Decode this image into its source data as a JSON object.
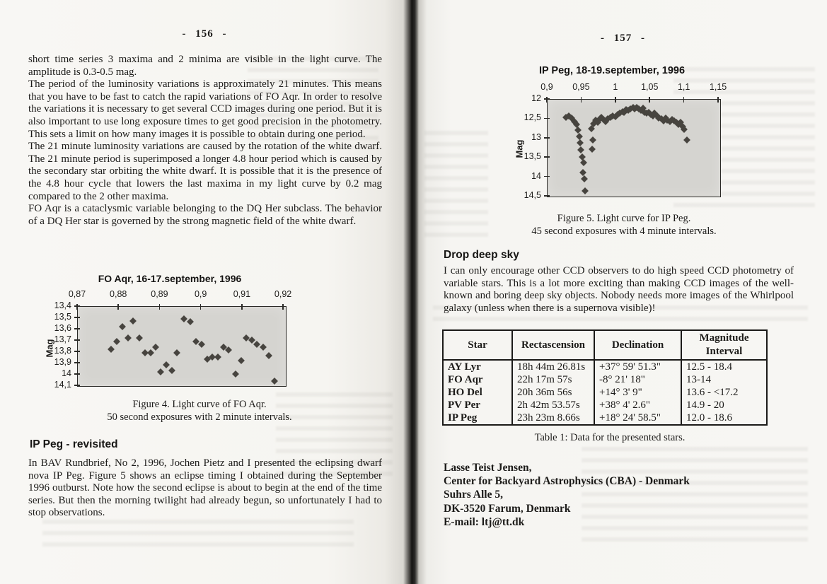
{
  "left_page": {
    "page_number": "- 156 -",
    "paragraphs": [
      "short time series 3 maxima and 2 minima are visible in the light curve. The amplitude is 0.3-0.5 mag.",
      "The period of the luminosity variations is approximately 21 minutes. This means that you have to be fast to catch the rapid variations of FO Aqr. In order to resolve the variations it is necessary to get several CCD images during one period. But it is also important to use long exposure times to get good precision in the photometry. This sets a limit on how many images it is possible to obtain during one period.",
      "The 21 minute luminosity variations are caused by the rotation of the white dwarf. The 21 minute period is superimposed a longer 4.8 hour period which is caused by the secondary star orbiting the white dwarf. It is possible that it is the presence of the 4.8 hour cycle that lowers the last maxima in my light curve by 0.2 mag compared to the 2 other maxima.",
      "FO Aqr is a cataclysmic variable belonging to the DQ Her subclass. The behavior of a DQ Her star is governed by the strong magnetic field of the white dwarf."
    ],
    "figure4": {
      "caption_line1": "Figure 4. Light curve of FO Aqr.",
      "caption_line2": "50 second exposures with 2 minute intervals."
    },
    "section": {
      "heading": "IP Peg - revisited",
      "body": "In BAV Rundbrief, No 2, 1996, Jochen Pietz and I presented the eclipsing dwarf nova IP Peg. Figure 5 shows an eclipse timing I obtained during the September 1996 outburst. Note how the second eclipse is about to begin at the end of the time series. But then the morning twilight had already begun, so unfortunately I had to stop observations."
    }
  },
  "right_page": {
    "page_number": "- 157 -",
    "figure5": {
      "caption_line1": "Figure 5. Light curve for IP Peg.",
      "caption_line2": "45 second exposures with 4 minute intervals."
    },
    "section": {
      "heading": "Drop deep sky",
      "body": "I can only encourage other CCD observers to do high speed CCD photometry of variable stars. This is a lot more exciting than making CCD images of the well-known and boring deep sky objects. Nobody needs more images of the Whirlpool galaxy (unless when there is a supernova visible)!"
    },
    "table": {
      "headers": [
        "Star",
        "Rectascension",
        "Declination",
        "Magnitude Interval"
      ],
      "rows": [
        [
          "AY Lyr",
          "18h 44m 26.81s",
          "+37° 59' 51.3\"",
          "12.5 - 18.4"
        ],
        [
          "FO Aqr",
          "22h 17m 57s",
          "-8° 21' 18\"",
          "13-14"
        ],
        [
          "HO Del",
          "20h 36m 56s",
          "+14° 3' 9\"",
          "13.6 - <17.2"
        ],
        [
          "PV Per",
          "2h 42m 53.57s",
          "+38° 4' 2.6\"",
          "14.9 - 20"
        ],
        [
          "IP Peg",
          "23h 23m 8.66s",
          "+18° 24' 58.5\"",
          "12.0 - 18.6"
        ]
      ],
      "caption": "Table 1: Data for the presented stars."
    },
    "contact": {
      "lines": [
        "Lasse Teist Jensen,",
        "Center for Backyard Astrophysics (CBA) - Denmark",
        "Suhrs Alle 5,",
        "DK-3520 Farum, Denmark",
        "E-mail: ltj@tt.dk"
      ]
    }
  },
  "chart_data": [
    {
      "id": "fo_aqr",
      "type": "scatter",
      "title": "FO Aqr, 16-17.september, 1996",
      "xlabel": "",
      "ylabel": "Mag",
      "x_axis_position": "top",
      "y_inverted_magnitude": true,
      "grid": false,
      "legend": "none",
      "xlim": [
        0.87,
        0.9205
      ],
      "ylim": [
        13.4,
        14.1
      ],
      "x_ticks": [
        {
          "v": 0.87,
          "label": "0,87"
        },
        {
          "v": 0.88,
          "label": "0,88"
        },
        {
          "v": 0.89,
          "label": "0,89"
        },
        {
          "v": 0.9,
          "label": "0,9"
        },
        {
          "v": 0.91,
          "label": "0,91"
        },
        {
          "v": 0.92,
          "label": "0,92"
        }
      ],
      "y_ticks": [
        {
          "v": 13.4,
          "label": "13,4"
        },
        {
          "v": 13.5,
          "label": "13,5"
        },
        {
          "v": 13.6,
          "label": "13,6"
        },
        {
          "v": 13.7,
          "label": "13,7"
        },
        {
          "v": 13.8,
          "label": "13,8"
        },
        {
          "v": 13.9,
          "label": "13,9"
        },
        {
          "v": 14.0,
          "label": "14"
        },
        {
          "v": 14.1,
          "label": "14,1"
        }
      ],
      "points": [
        [
          0.8782,
          13.78
        ],
        [
          0.8797,
          13.71
        ],
        [
          0.881,
          13.58
        ],
        [
          0.8823,
          13.68
        ],
        [
          0.8836,
          13.53
        ],
        [
          0.8851,
          13.68
        ],
        [
          0.8865,
          13.81
        ],
        [
          0.8878,
          13.81
        ],
        [
          0.8891,
          13.76
        ],
        [
          0.8903,
          13.98
        ],
        [
          0.8917,
          13.92
        ],
        [
          0.8931,
          13.97
        ],
        [
          0.8943,
          13.81
        ],
        [
          0.8959,
          13.51
        ],
        [
          0.8974,
          13.54
        ],
        [
          0.8989,
          13.71
        ],
        [
          0.9002,
          13.74
        ],
        [
          0.9016,
          13.87
        ],
        [
          0.9028,
          13.85
        ],
        [
          0.9041,
          13.85
        ],
        [
          0.9056,
          13.76
        ],
        [
          0.9068,
          13.79
        ],
        [
          0.9084,
          14.0
        ],
        [
          0.9098,
          13.88
        ],
        [
          0.9111,
          13.68
        ],
        [
          0.9124,
          13.7
        ],
        [
          0.9137,
          13.74
        ],
        [
          0.9151,
          13.76
        ],
        [
          0.9165,
          13.84
        ],
        [
          0.918,
          14.06
        ]
      ]
    },
    {
      "id": "ip_peg",
      "type": "scatter",
      "title": "IP Peg, 18-19.september, 1996",
      "xlabel": "",
      "ylabel": "Mag",
      "x_axis_position": "top",
      "y_inverted_magnitude": true,
      "grid": false,
      "legend": "none",
      "xlim": [
        0.9,
        1.152
      ],
      "ylim": [
        12.0,
        14.5
      ],
      "x_ticks": [
        {
          "v": 0.9,
          "label": "0,9"
        },
        {
          "v": 0.95,
          "label": "0,95"
        },
        {
          "v": 1.0,
          "label": "1"
        },
        {
          "v": 1.05,
          "label": "1,05"
        },
        {
          "v": 1.1,
          "label": "1,1"
        },
        {
          "v": 1.15,
          "label": "1,15"
        }
      ],
      "y_ticks": [
        {
          "v": 12.0,
          "label": "12"
        },
        {
          "v": 12.5,
          "label": "12,5"
        },
        {
          "v": 13.0,
          "label": "13"
        },
        {
          "v": 13.5,
          "label": "13,5"
        },
        {
          "v": 14.0,
          "label": "14"
        },
        {
          "v": 14.5,
          "label": "14,5"
        }
      ],
      "points": [
        [
          0.928,
          12.48
        ],
        [
          0.932,
          12.44
        ],
        [
          0.936,
          12.49
        ],
        [
          0.94,
          12.58
        ],
        [
          0.943,
          12.66
        ],
        [
          0.945,
          12.8
        ],
        [
          0.948,
          12.97
        ],
        [
          0.949,
          13.13
        ],
        [
          0.95,
          13.32
        ],
        [
          0.952,
          13.5
        ],
        [
          0.954,
          13.65
        ],
        [
          0.953,
          13.9
        ],
        [
          0.955,
          14.07
        ],
        [
          0.956,
          14.38
        ],
        [
          0.966,
          13.29
        ],
        [
          0.967,
          13.05
        ],
        [
          0.965,
          12.77
        ],
        [
          0.968,
          12.63
        ],
        [
          0.971,
          12.55
        ],
        [
          0.974,
          12.6
        ],
        [
          0.977,
          12.52
        ],
        [
          0.98,
          12.48
        ],
        [
          0.983,
          12.53
        ],
        [
          0.986,
          12.58
        ],
        [
          0.989,
          12.52
        ],
        [
          0.993,
          12.48
        ],
        [
          0.996,
          12.43
        ],
        [
          1.0,
          12.45
        ],
        [
          1.003,
          12.4
        ],
        [
          1.006,
          12.36
        ],
        [
          1.01,
          12.32
        ],
        [
          1.013,
          12.34
        ],
        [
          1.016,
          12.28
        ],
        [
          1.019,
          12.3
        ],
        [
          1.022,
          12.25
        ],
        [
          1.026,
          12.21
        ],
        [
          1.028,
          12.25
        ],
        [
          1.031,
          12.22
        ],
        [
          1.034,
          12.26
        ],
        [
          1.037,
          12.29
        ],
        [
          1.04,
          12.23
        ],
        [
          1.043,
          12.34
        ],
        [
          1.046,
          12.37
        ],
        [
          1.049,
          12.34
        ],
        [
          1.052,
          12.4
        ],
        [
          1.055,
          12.43
        ],
        [
          1.057,
          12.36
        ],
        [
          1.061,
          12.43
        ],
        [
          1.063,
          12.49
        ],
        [
          1.067,
          12.52
        ],
        [
          1.07,
          12.56
        ],
        [
          1.073,
          12.5
        ],
        [
          1.076,
          12.54
        ],
        [
          1.08,
          12.58
        ],
        [
          1.083,
          12.53
        ],
        [
          1.086,
          12.56
        ],
        [
          1.089,
          12.61
        ],
        [
          1.092,
          12.65
        ],
        [
          1.095,
          12.61
        ],
        [
          1.098,
          12.72
        ],
        [
          1.1,
          12.78
        ],
        [
          1.104,
          13.06
        ]
      ]
    }
  ]
}
